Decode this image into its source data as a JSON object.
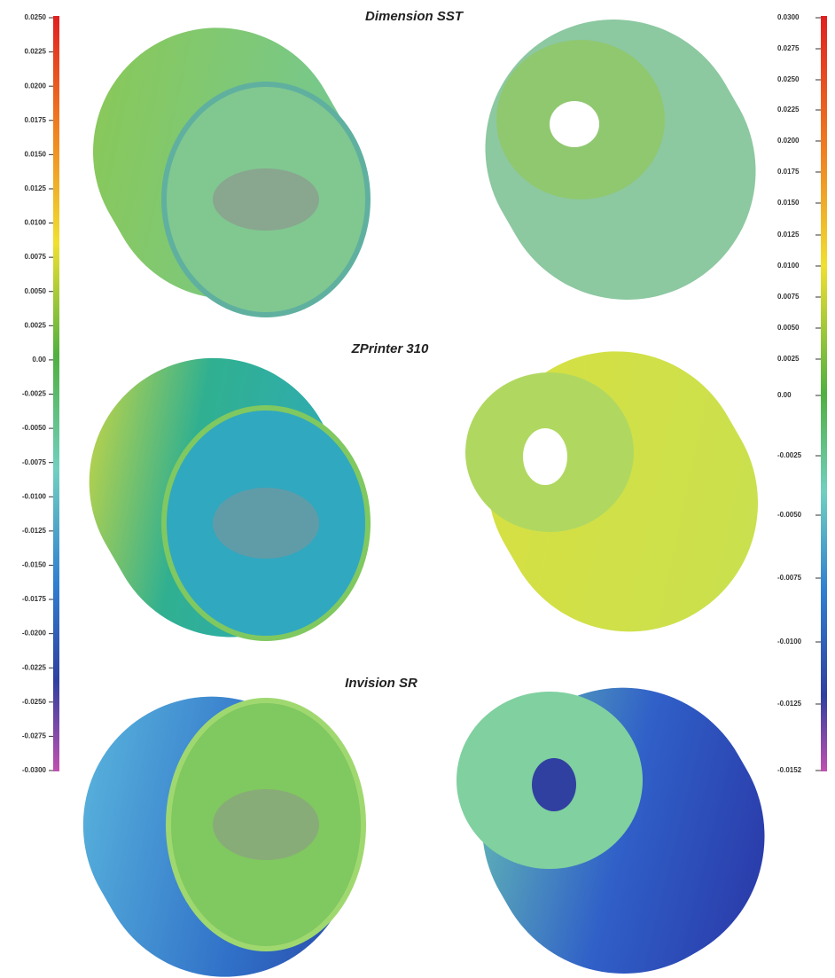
{
  "titles": [
    "Dimension SST",
    "ZPrinter 310",
    "Invision SR"
  ],
  "left_scale": {
    "labels": [
      "0.0250",
      "0.0225",
      "0.0200",
      "0.0175",
      "0.0150",
      "0.0125",
      "0.0100",
      "0.0075",
      "0.0050",
      "0.0025",
      "0.00",
      "-0.0025",
      "-0.0050",
      "-0.0075",
      "-0.0100",
      "-0.0125",
      "-0.0150",
      "-0.0175",
      "-0.0200",
      "-0.0225",
      "-0.0250",
      "-0.0275",
      "-0.0300"
    ]
  },
  "right_scale": {
    "labels": [
      "0.0300",
      "0.0275",
      "0.0250",
      "0.0225",
      "0.0200",
      "0.0175",
      "0.0150",
      "0.0125",
      "0.0100",
      "0.0075",
      "0.0050",
      "0.0025",
      "0.00",
      "-0.0025",
      "-0.0050",
      "-0.0075",
      "-0.0100",
      "-0.0125",
      "-0.0152"
    ]
  }
}
